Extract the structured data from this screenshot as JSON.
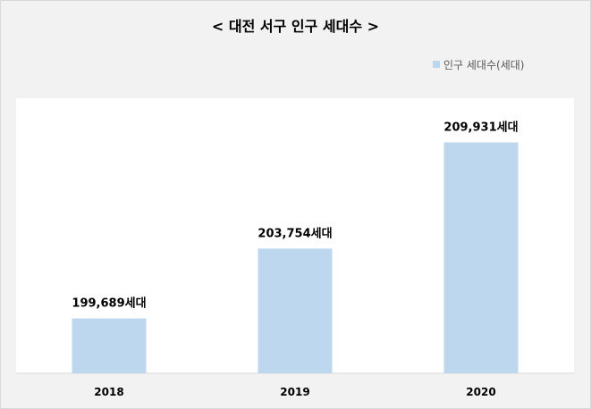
{
  "chart_data": {
    "type": "bar",
    "title": "< 대전 서구 인구 세대수 >",
    "categories": [
      "2018",
      "2019",
      "2020"
    ],
    "series": [
      {
        "name": "인구 세대수(세대)",
        "values": [
          199689,
          203754,
          209931
        ],
        "data_labels": [
          "199,689세대",
          "203,754세대",
          "209,931세대"
        ]
      }
    ],
    "xlabel": "",
    "ylabel": "",
    "ylim": [
      196500,
      212500
    ],
    "grid": false,
    "legend_position": "top-right",
    "colors": {
      "bar": "#bdd7ee",
      "plot_background": "#ffffff",
      "chart_background": "#f2f2f2"
    }
  }
}
